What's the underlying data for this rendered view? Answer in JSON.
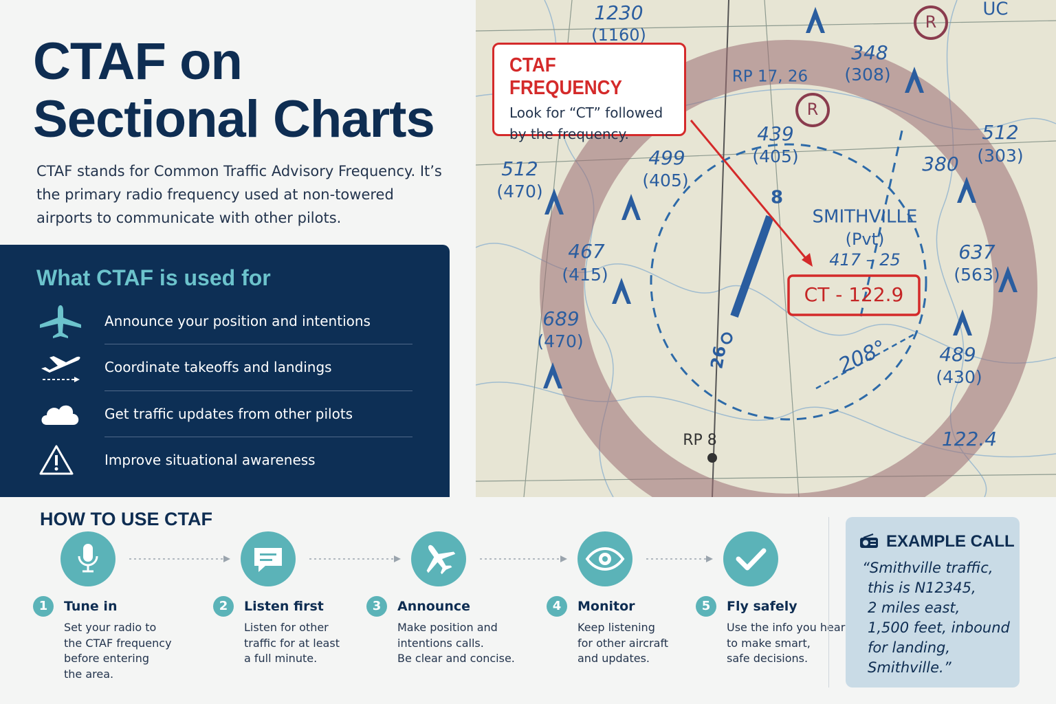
{
  "header": {
    "title": [
      "CTAF on",
      "Sectional Charts"
    ],
    "intro": "CTAF stands for Common Traffic Advisory Frequency. It’s the primary radio frequency used at non-towered airports to communicate with other pilots."
  },
  "uses": {
    "heading": "What CTAF is used for",
    "items": [
      "Announce your position and intentions",
      "Coordinate takeoffs and landings",
      "Get traffic updates from other pilots",
      "Improve situational awareness"
    ]
  },
  "map": {
    "labels": [
      "1230",
      "(1160)",
      "UC",
      "348",
      "(308)",
      "RP 17, 26",
      "439",
      "(405)",
      "512",
      "(303)",
      "512",
      "(470)",
      "499",
      "(405)",
      "380",
      "SMITHVILLE",
      "(Pvt)",
      "417 – 25",
      "CT - 122.9",
      "467",
      "(415)",
      "637",
      "(563)",
      "689",
      "(470)",
      "489",
      "(430)",
      "208°",
      "8",
      "26",
      "RP 8",
      "122.4",
      "R",
      "R"
    ],
    "callout": {
      "title": "CTAF FREQUENCY",
      "text": [
        "Look for “CT” followed",
        "by the frequency."
      ]
    }
  },
  "how_to": {
    "heading": "HOW TO USE CTAF",
    "steps": [
      {
        "number": 1,
        "title": "Tune in",
        "text": [
          "Set your radio to",
          "the CTAF frequency",
          "before entering",
          "the area."
        ]
      },
      {
        "number": 2,
        "title": "Listen first",
        "text": [
          "Listen for other",
          "traffic for at least",
          "a full minute."
        ]
      },
      {
        "number": 3,
        "title": "Announce",
        "text": [
          "Make position and",
          "intentions calls.",
          "Be clear and concise."
        ]
      },
      {
        "number": 4,
        "title": "Monitor",
        "text": [
          "Keep listening",
          "for other aircraft",
          "and updates."
        ]
      },
      {
        "number": 5,
        "title": "Fly safely",
        "text": [
          "Use the info you hear",
          "to make smart,",
          "safe decisions."
        ]
      }
    ]
  },
  "example": {
    "heading": "EXAMPLE CALL",
    "text": [
      "“Smithville traffic,",
      "this is N12345,",
      "2 miles east,",
      "1,500 feet, inbound",
      "for landing,",
      "Smithville.”"
    ]
  }
}
